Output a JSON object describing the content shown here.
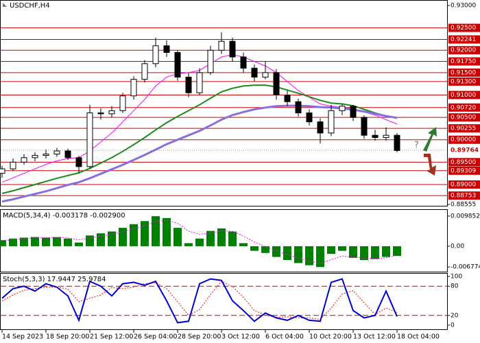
{
  "chart_data": [
    {
      "type": "candlestick",
      "title": "USDCHF,H4",
      "xlim": [
        0,
        40.5
      ],
      "xticks": [
        {
          "value": 0,
          "label": "14 Sep 2023"
        },
        {
          "value": 4,
          "label": "18 Sep 20:00"
        },
        {
          "value": 8,
          "label": "21 Sep 12:00"
        },
        {
          "value": 12,
          "label": "26 Sep 04:00"
        },
        {
          "value": 16,
          "label": "28 Sep 20:00"
        },
        {
          "value": 20,
          "label": "3 Oct 12:00"
        },
        {
          "value": 24,
          "label": "6 Oct 04:00"
        },
        {
          "value": 28,
          "label": "10 Oct 20:00"
        },
        {
          "value": 32,
          "label": "13 Oct 12:00"
        },
        {
          "value": 36,
          "label": "18 Oct 04:00"
        }
      ],
      "ylim": [
        0.88555,
        0.93
      ],
      "yticks": [
        {
          "value": 0.93,
          "label": "0.93000"
        },
        {
          "value": 0.88555,
          "label": "0.88555"
        }
      ],
      "open": [
        0.8925,
        0.8935,
        0.895,
        0.896,
        0.8965,
        0.8968,
        0.8975,
        0.896,
        0.894,
        0.906,
        0.9058,
        0.9065,
        0.9098,
        0.9135,
        0.917,
        0.921,
        0.9195,
        0.914,
        0.9105,
        0.915,
        0.92,
        0.922,
        0.9185,
        0.916,
        0.914,
        0.915,
        0.91,
        0.9085,
        0.906,
        0.904,
        0.9015,
        0.9065,
        0.9075,
        0.905,
        0.901,
        0.9005,
        0.901
      ],
      "high": [
        0.8942,
        0.8958,
        0.8968,
        0.8972,
        0.8978,
        0.8982,
        0.898,
        0.8964,
        0.9078,
        0.907,
        0.9075,
        0.9105,
        0.9142,
        0.9178,
        0.9228,
        0.9222,
        0.92,
        0.915,
        0.916,
        0.921,
        0.924,
        0.9228,
        0.9195,
        0.9168,
        0.9175,
        0.9158,
        0.911,
        0.9092,
        0.9068,
        0.9048,
        0.9078,
        0.908,
        0.9078,
        0.9055,
        0.9022,
        0.9028,
        0.9015
      ],
      "low": [
        0.8915,
        0.893,
        0.8944,
        0.8952,
        0.8958,
        0.8962,
        0.8955,
        0.8925,
        0.8936,
        0.9045,
        0.905,
        0.906,
        0.909,
        0.9128,
        0.9162,
        0.9185,
        0.9132,
        0.9095,
        0.91,
        0.9145,
        0.9192,
        0.9175,
        0.915,
        0.913,
        0.9135,
        0.909,
        0.9075,
        0.9052,
        0.9032,
        0.8992,
        0.9008,
        0.9055,
        0.9042,
        0.9002,
        0.8998,
        0.8998,
        0.8972
      ],
      "close": [
        0.8935,
        0.895,
        0.896,
        0.8965,
        0.8968,
        0.8975,
        0.896,
        0.894,
        0.906,
        0.9058,
        0.9065,
        0.9098,
        0.9135,
        0.917,
        0.921,
        0.9195,
        0.914,
        0.9105,
        0.915,
        0.92,
        0.922,
        0.9185,
        0.916,
        0.914,
        0.915,
        0.91,
        0.9085,
        0.906,
        0.904,
        0.9015,
        0.9065,
        0.9075,
        0.905,
        0.901,
        0.9005,
        0.901,
        0.8976
      ],
      "lines": [
        {
          "color": "#ff00ff",
          "width": 1,
          "values": [
            0.8905,
            0.8915,
            0.8925,
            0.8935,
            0.8945,
            0.8953,
            0.8958,
            0.896,
            0.8975,
            0.8995,
            0.9015,
            0.904,
            0.9065,
            0.909,
            0.912,
            0.914,
            0.9148,
            0.915,
            0.9155,
            0.917,
            0.9185,
            0.919,
            0.9185,
            0.9175,
            0.9165,
            0.915,
            0.913,
            0.911,
            0.9095,
            0.908,
            0.9075,
            0.9072,
            0.907,
            0.9062,
            0.9055,
            0.9045,
            0.9035
          ]
        },
        {
          "color": "#1a8a1a",
          "width": 2,
          "values": [
            0.888,
            0.8886,
            0.8893,
            0.89,
            0.8907,
            0.8914,
            0.892,
            0.8926,
            0.8936,
            0.8948,
            0.896,
            0.8974,
            0.8989,
            0.9005,
            0.9022,
            0.9038,
            0.9052,
            0.9065,
            0.9078,
            0.9093,
            0.9107,
            0.9115,
            0.912,
            0.9122,
            0.9122,
            0.9118,
            0.9111,
            0.9104,
            0.9096,
            0.9088,
            0.9082,
            0.908,
            0.9076,
            0.9068,
            0.906,
            0.9053,
            0.9048
          ]
        },
        {
          "color": "#8a6ee0",
          "width": 3,
          "values": [
            0.8862,
            0.8867,
            0.8873,
            0.8879,
            0.8885,
            0.8892,
            0.8899,
            0.8905,
            0.8914,
            0.8924,
            0.8934,
            0.8944,
            0.8955,
            0.8966,
            0.8978,
            0.899,
            0.9,
            0.901,
            0.902,
            0.9032,
            0.9045,
            0.9055,
            0.9062,
            0.9068,
            0.9072,
            0.9075,
            0.9076,
            0.9076,
            0.9075,
            0.9073,
            0.9072,
            0.907,
            0.9067,
            0.9063,
            0.9058,
            0.9053,
            0.9049
          ]
        }
      ],
      "level_color": "#cc0000",
      "levels": [
        {
          "value": 0.925,
          "label": "0.92500"
        },
        {
          "value": 0.92241,
          "label": "0.92241"
        },
        {
          "value": 0.92,
          "label": "0.92000"
        },
        {
          "value": 0.9175,
          "label": "0.91750"
        },
        {
          "value": 0.915,
          "label": "0.91500"
        },
        {
          "value": 0.913,
          "label": "0.91300"
        },
        {
          "value": 0.91,
          "label": "0.91000"
        },
        {
          "value": 0.9072,
          "label": "0.90720"
        },
        {
          "value": 0.905,
          "label": "0.90500"
        },
        {
          "value": 0.90255,
          "label": "0.90255"
        },
        {
          "value": 0.9,
          "label": "0.90000"
        },
        {
          "value": 0.895,
          "label": "0.89500"
        },
        {
          "value": 0.89309,
          "label": "0.89309"
        },
        {
          "value": 0.89,
          "label": "0.89000"
        },
        {
          "value": 0.88753,
          "label": "0.88753"
        }
      ],
      "current": {
        "value": 0.89764,
        "label": "0.89764"
      },
      "annotation": "?"
    },
    {
      "type": "macd",
      "title": "MACD(5,34,4) -0.003178 -0.002900",
      "ylim": [
        -0.0083,
        0.0114
      ],
      "yticks": [
        0.009852,
        {
          "value": 0,
          "label": "0.00"
        },
        -0.006774
      ],
      "color": "#008000",
      "signal_color": "#ff00ff",
      "values": [
        0.002,
        0.0025,
        0.0028,
        0.003,
        0.0028,
        0.003,
        0.0025,
        0.0012,
        0.0035,
        0.0042,
        0.0048,
        0.006,
        0.0072,
        0.0082,
        0.0098,
        0.0092,
        0.006,
        0.001,
        0.0025,
        0.005,
        0.0058,
        0.0048,
        0.001,
        -0.0015,
        -0.0022,
        -0.0035,
        -0.0045,
        -0.0055,
        -0.0062,
        -0.0068,
        -0.0025,
        -0.0015,
        -0.0038,
        -0.0045,
        -0.0042,
        -0.0035,
        -0.003178
      ],
      "signal": [
        0.0018,
        0.0021,
        0.0024,
        0.0027,
        0.0028,
        0.0029,
        0.0027,
        0.0021,
        0.0027,
        0.0033,
        0.0039,
        0.0047,
        0.0057,
        0.0067,
        0.008,
        0.0085,
        0.0075,
        0.0049,
        0.0039,
        0.0043,
        0.0049,
        0.0049,
        0.0033,
        0.0014,
        -0.0001,
        -0.0015,
        -0.0027,
        -0.0038,
        -0.0048,
        -0.0056,
        -0.0044,
        -0.0032,
        -0.0035,
        -0.0039,
        -0.004,
        -0.0038,
        -0.0029
      ]
    },
    {
      "type": "stochastic",
      "title": "Stoch(5,3,3) 17.9447 25.9784",
      "ylim": [
        0,
        100
      ],
      "yticks": [
        100,
        80,
        20,
        0
      ],
      "levels": [
        80,
        20
      ],
      "level_color": "#cc0000",
      "color": "#0000cd",
      "signal_color": "#ff0000",
      "values": [
        55,
        75,
        80,
        70,
        85,
        78,
        60,
        10,
        90,
        80,
        60,
        85,
        88,
        82,
        90,
        50,
        5,
        8,
        85,
        95,
        92,
        50,
        30,
        8,
        25,
        15,
        10,
        20,
        10,
        8,
        88,
        95,
        30,
        15,
        20,
        70,
        17.9447
      ],
      "signal": [
        50,
        62,
        72,
        75,
        78,
        78,
        74,
        48,
        55,
        62,
        77,
        75,
        78,
        85,
        87,
        75,
        48,
        20,
        32,
        63,
        90,
        79,
        57,
        30,
        21,
        16,
        17,
        15,
        15,
        12,
        35,
        64,
        71,
        46,
        22,
        35,
        25.9784
      ]
    }
  ]
}
